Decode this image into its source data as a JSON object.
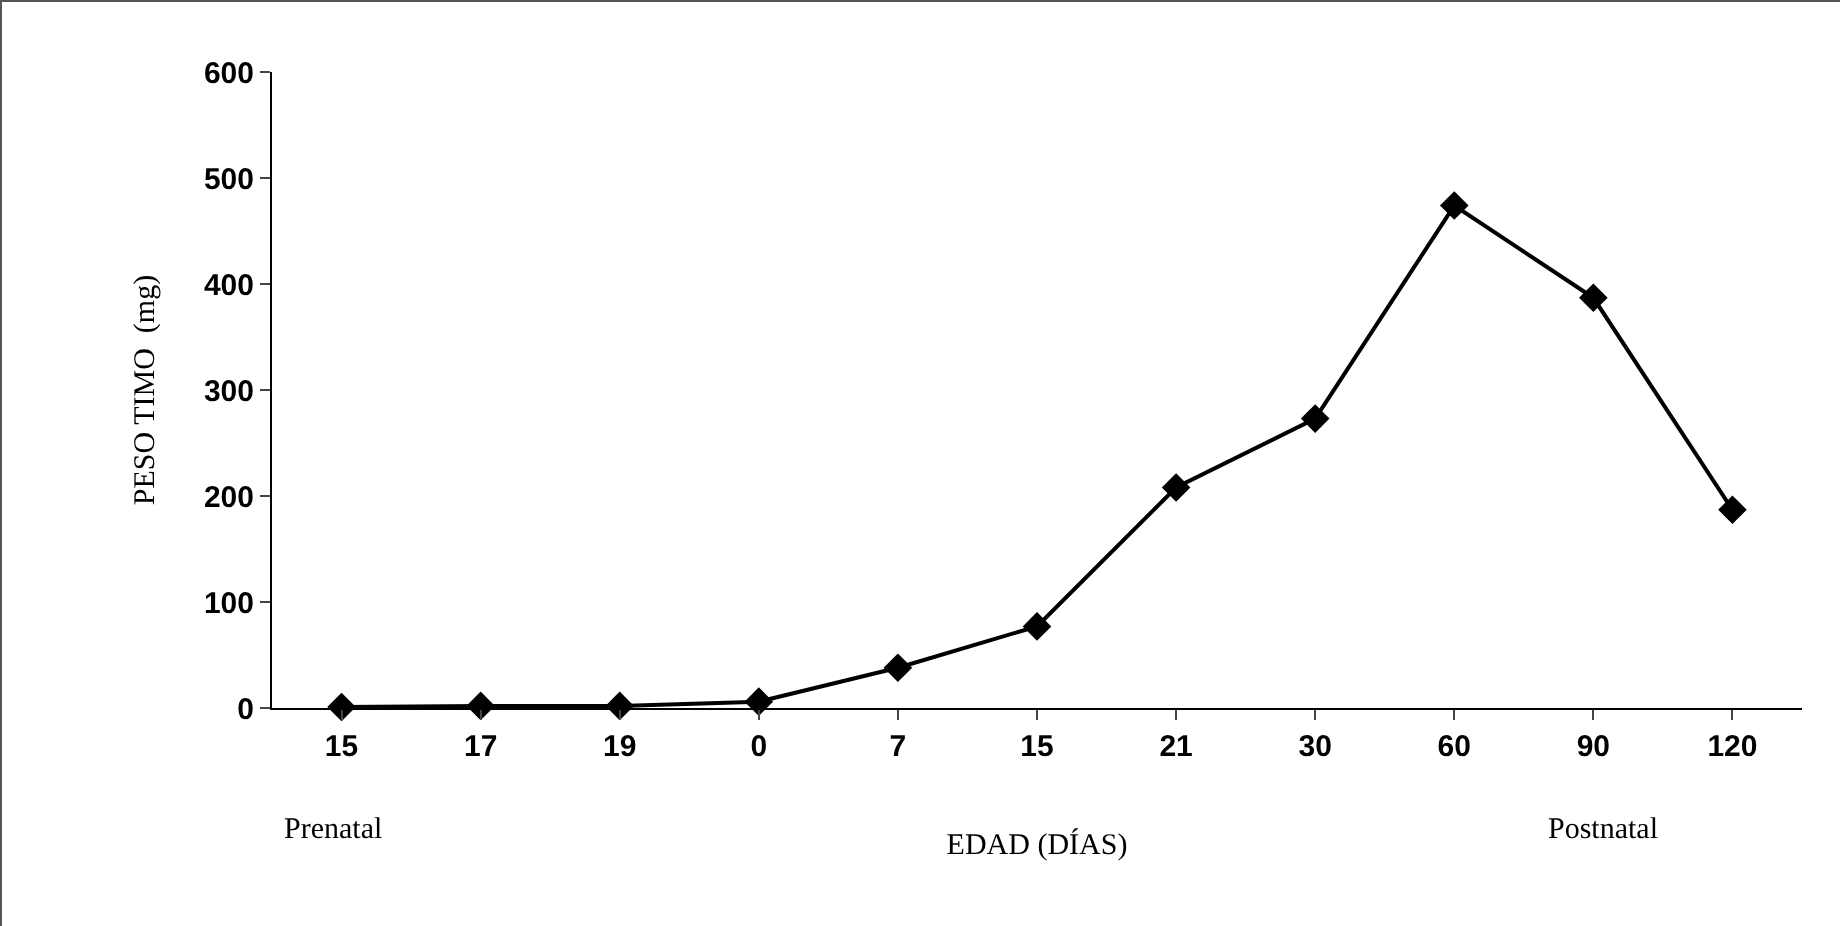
{
  "chart_data": {
    "type": "line",
    "xlabel": "EDAD (DÍAS)",
    "ylabel": "PESO TIMO  (mg)",
    "categories": [
      "15",
      "17",
      "19",
      "0",
      "7",
      "15",
      "21",
      "30",
      "60",
      "90",
      "120"
    ],
    "series": [
      {
        "color": "#000000",
        "values": [
          1,
          2,
          2,
          6,
          38,
          77,
          208,
          273,
          474,
          387,
          187
        ]
      }
    ],
    "ylim": [
      0,
      600
    ],
    "yticks": [
      0,
      100,
      200,
      300,
      400,
      500,
      600
    ],
    "annotations": [
      "Prenatal",
      "Postnatal"
    ],
    "grid": false,
    "legend": false,
    "marker": "diamond",
    "line_style": "solid"
  }
}
